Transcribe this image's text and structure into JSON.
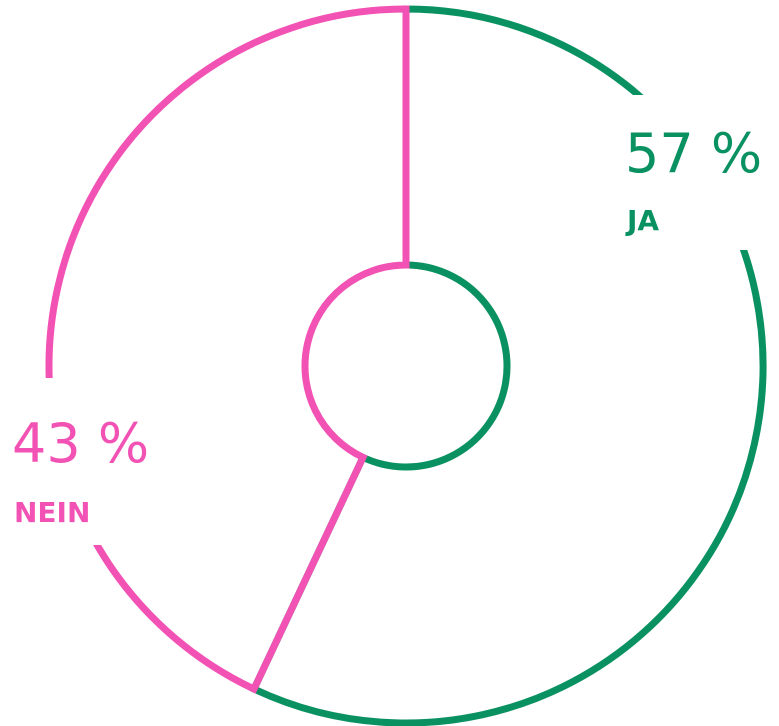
{
  "chart_data": {
    "type": "pie",
    "categories": [
      "JA",
      "NEIN"
    ],
    "values": [
      57,
      43
    ],
    "value_labels": [
      "57 %",
      "43 %"
    ],
    "colors": [
      "#0a9162",
      "#f252b4"
    ]
  }
}
